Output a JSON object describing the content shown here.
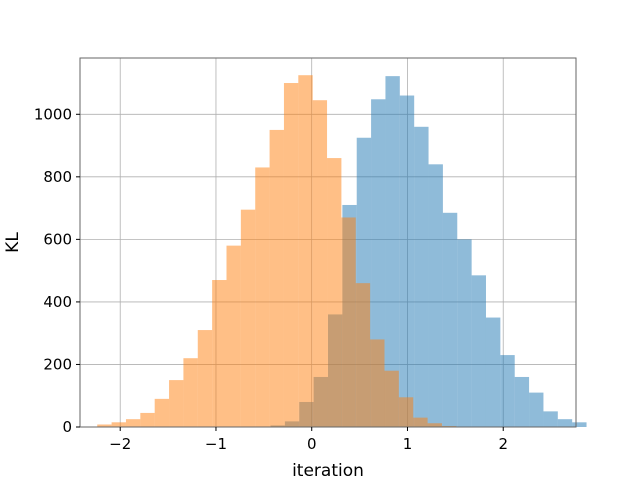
{
  "chart_data": {
    "type": "bar",
    "title": "",
    "xlabel": "iteration",
    "ylabel": "KL",
    "xlim": [
      -2.42,
      2.76
    ],
    "ylim": [
      0,
      1180
    ],
    "xticks": [
      -2,
      -1,
      0,
      1,
      2
    ],
    "xtick_labels": [
      "−2",
      "−1",
      "0",
      "1",
      "2"
    ],
    "yticks": [
      0,
      200,
      400,
      600,
      800,
      1000
    ],
    "ytick_labels": [
      "0",
      "200",
      "400",
      "600",
      "800",
      "1000"
    ],
    "grid": true,
    "legend": "none",
    "series": [
      {
        "color": "#1f77b4",
        "opacity": 0.5,
        "bin_start": -2.08,
        "bin_width": 0.15,
        "values": [
          0,
          0,
          0,
          0,
          0,
          0,
          0,
          0,
          0,
          0,
          0,
          5,
          18,
          80,
          160,
          360,
          710,
          925,
          1048,
          1122,
          1060,
          960,
          840,
          685,
          600,
          485,
          350,
          230,
          160,
          110,
          50,
          25,
          15
        ]
      },
      {
        "color": "#ff7f0e",
        "opacity": 0.5,
        "bin_start": -2.24,
        "bin_width": 0.15,
        "values": [
          8,
          15,
          25,
          45,
          90,
          150,
          220,
          310,
          470,
          580,
          695,
          830,
          950,
          1100,
          1125,
          1045,
          860,
          670,
          460,
          280,
          180,
          95,
          30,
          12,
          3
        ]
      }
    ]
  }
}
